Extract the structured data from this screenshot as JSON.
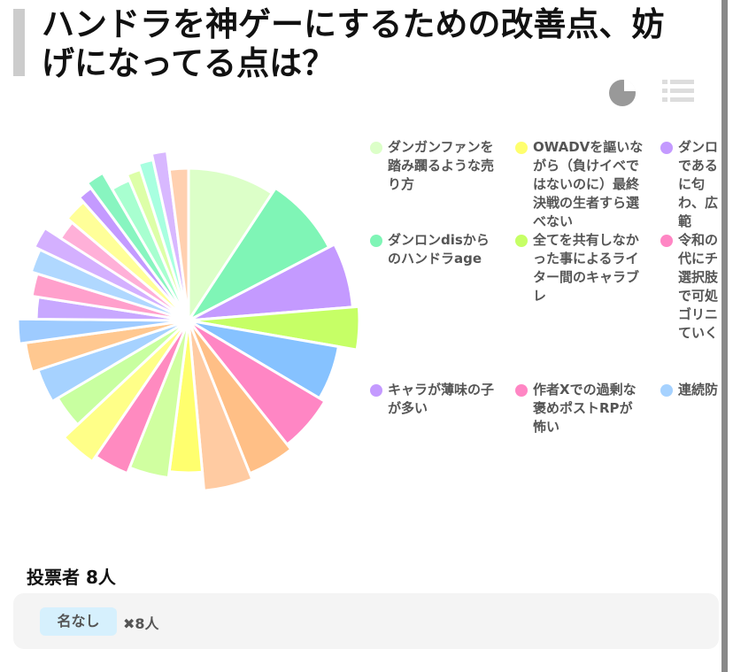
{
  "title": "ハンドラを神ゲーにするための改善点、妨げになってる点は？",
  "chart_data": {
    "type": "pie",
    "categories": [
      "ダンガンファンを踏み躙るような売り方",
      "ダンロンdisからのハンドラage",
      "キャラが薄味の子が多い",
      "OWADVを謳いながら（負けイベではないのに）最終決戦の生者すら選べない",
      "全てを共有しなかった事によるライター間のキャラブレ",
      "作者Xでの過剰な褒めポストRPが怖い",
      "ダンロであるに匂わ、広範",
      "令和の代にチ選択肢で可処ゴリニていく",
      "連続防",
      null,
      null,
      null,
      null,
      null,
      null,
      null,
      null,
      null,
      null,
      null,
      null,
      null,
      null,
      null,
      null,
      null,
      null,
      null,
      null
    ],
    "values": [
      32,
      28,
      22,
      14,
      20,
      20,
      16,
      16,
      12,
      14,
      12,
      12,
      12,
      12,
      10,
      8,
      8,
      8,
      8,
      7,
      7,
      8,
      5,
      6,
      7,
      5,
      5,
      5,
      7
    ],
    "colors": [
      "#dcffc8",
      "#7ff5b6",
      "#c49aff",
      "#c6ff66",
      "#86c2ff",
      "#ff86c4",
      "#ffbf86",
      "#ffcba2",
      "#ffff6e",
      "#d0ffa0",
      "#ff8ac0",
      "#ffff88",
      "#c8ffa0",
      "#a6d2ff",
      "#ffc890",
      "#9ecbff",
      "#c8a8ff",
      "#ffa0cc",
      "#b0d8ff",
      "#d4b0ff",
      "#ffb0d8",
      "#ffff99",
      "#c49aff",
      "#88f5c0",
      "#a8ffd0",
      "#ddffa8",
      "#a8ffe0",
      "#d8b8ff",
      "#ffd0b0"
    ],
    "legend_colors": [
      "#dcffc8",
      "#7ff5b6",
      "#c49aff",
      "#ffff6e",
      "#c6ff66",
      "#ff86c4",
      "#c49aff",
      "#ff86c4",
      "#a6d2ff"
    ]
  },
  "voters": "投票者 8人",
  "votes": [
    {
      "name": "名なし",
      "count": "8人"
    }
  ]
}
